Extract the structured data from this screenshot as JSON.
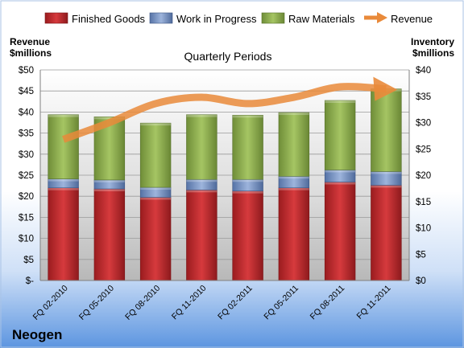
{
  "chart_data": {
    "type": "bar",
    "stacked": true,
    "title": "Quarterly Periods",
    "company": "Neogen",
    "y_left_label_line1": "Revenue",
    "y_left_label_line2": "$millions",
    "y_right_label_line1": "Inventory",
    "y_right_label_line2": "$millions",
    "categories": [
      "FQ 02-2010",
      "FQ 05-2010",
      "FQ 08-2010",
      "FQ 11-2010",
      "FQ 02-2011",
      "FQ 05-2011",
      "FQ 08-2011",
      "FQ 11-2011"
    ],
    "left_axis": {
      "min": 0,
      "max": 50,
      "step": 5,
      "ticks": [
        "$-",
        "$5",
        "$10",
        "$15",
        "$20",
        "$25",
        "$30",
        "$35",
        "$40",
        "$45",
        "$50"
      ]
    },
    "right_axis": {
      "min": 0,
      "max": 40,
      "step": 5,
      "ticks": [
        "$0",
        "$5",
        "$10",
        "$15",
        "$20",
        "$25",
        "$30",
        "$35",
        "$40"
      ]
    },
    "series": [
      {
        "name": "Finished Goods",
        "axis": "right",
        "color": "#c0282c",
        "values": [
          17.6,
          17.4,
          15.8,
          17.2,
          17.0,
          17.6,
          18.7,
          18.1
        ]
      },
      {
        "name": "Work in Progress",
        "axis": "right",
        "color": "#6f8fc4",
        "values": [
          1.7,
          1.7,
          1.9,
          2.0,
          2.2,
          2.2,
          2.3,
          2.6
        ]
      },
      {
        "name": "Raw Materials",
        "axis": "right",
        "color": "#8fb051",
        "values": [
          12.2,
          12.0,
          12.2,
          12.3,
          12.2,
          12.1,
          13.2,
          15.7
        ]
      },
      {
        "name": "Revenue",
        "axis": "left",
        "type": "line",
        "color": "#e98a3a",
        "values": [
          33.5,
          37.5,
          42.0,
          43.5,
          42.0,
          43.5,
          46.0,
          45.5
        ]
      }
    ],
    "legend_position": "top",
    "grid": true
  }
}
